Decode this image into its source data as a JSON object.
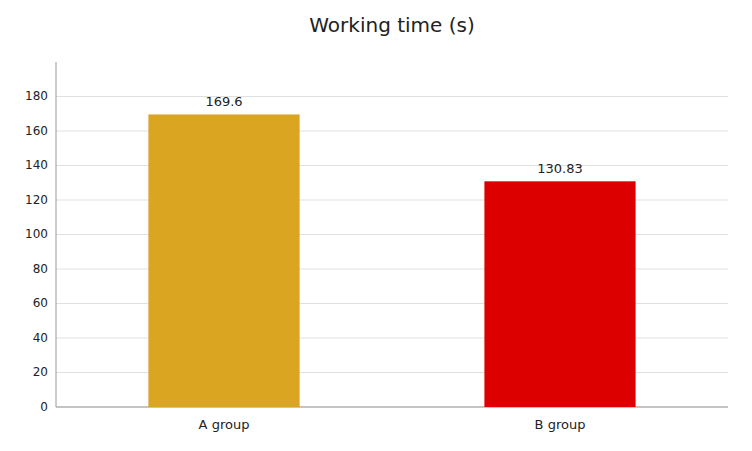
{
  "chart_data": {
    "type": "bar",
    "title": "Working time (s)",
    "categories": [
      "A group",
      "B group"
    ],
    "values": [
      169.6,
      130.83
    ],
    "colors": [
      "#DAA520",
      "#DD0000"
    ],
    "ylim": [
      0,
      200
    ],
    "yticks": [
      0,
      20,
      40,
      60,
      80,
      100,
      120,
      140,
      160,
      180
    ],
    "grid": true,
    "data_labels": true
  }
}
